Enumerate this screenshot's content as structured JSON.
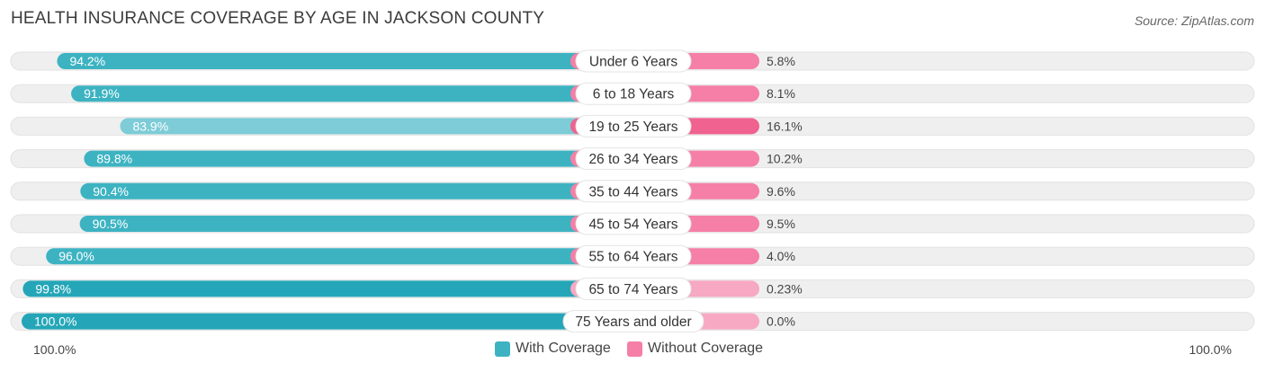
{
  "title": "HEALTH INSURANCE COVERAGE BY AGE IN JACKSON COUNTY",
  "source": "Source: ZipAtlas.com",
  "colors": {
    "with_coverage": "#3db3c2",
    "with_coverage_strong": "#24a6b8",
    "with_coverage_light": "#7dccd7",
    "without_coverage": "#f57fa6",
    "without_coverage_strong": "#f0628f",
    "without_coverage_light": "#f7a8c3",
    "track": "#efefef"
  },
  "legend": {
    "with": "With Coverage",
    "without": "Without Coverage"
  },
  "axis": {
    "left_label": "100.0%",
    "right_label": "100.0%"
  },
  "chart_data": {
    "type": "bar",
    "orientation": "horizontal-diverging",
    "title": "HEALTH INSURANCE COVERAGE BY AGE IN JACKSON COUNTY",
    "categories": [
      "Under 6 Years",
      "6 to 18 Years",
      "19 to 25 Years",
      "26 to 34 Years",
      "35 to 44 Years",
      "45 to 54 Years",
      "55 to 64 Years",
      "65 to 74 Years",
      "75 Years and older"
    ],
    "series": [
      {
        "name": "With Coverage",
        "values": [
          94.2,
          91.9,
          83.9,
          89.8,
          90.4,
          90.5,
          96.0,
          99.8,
          100.0
        ],
        "labels": [
          "94.2%",
          "91.9%",
          "83.9%",
          "89.8%",
          "90.4%",
          "90.5%",
          "96.0%",
          "99.8%",
          "100.0%"
        ]
      },
      {
        "name": "Without Coverage",
        "values": [
          5.8,
          8.1,
          16.1,
          10.2,
          9.6,
          9.5,
          4.0,
          0.23,
          0.0
        ],
        "labels": [
          "5.8%",
          "8.1%",
          "16.1%",
          "10.2%",
          "9.6%",
          "9.5%",
          "4.0%",
          "0.23%",
          "0.0%"
        ]
      }
    ],
    "xlim": [
      -100,
      100
    ],
    "xlabel_left": "100.0%",
    "xlabel_right": "100.0%",
    "legend_position": "bottom-center"
  }
}
